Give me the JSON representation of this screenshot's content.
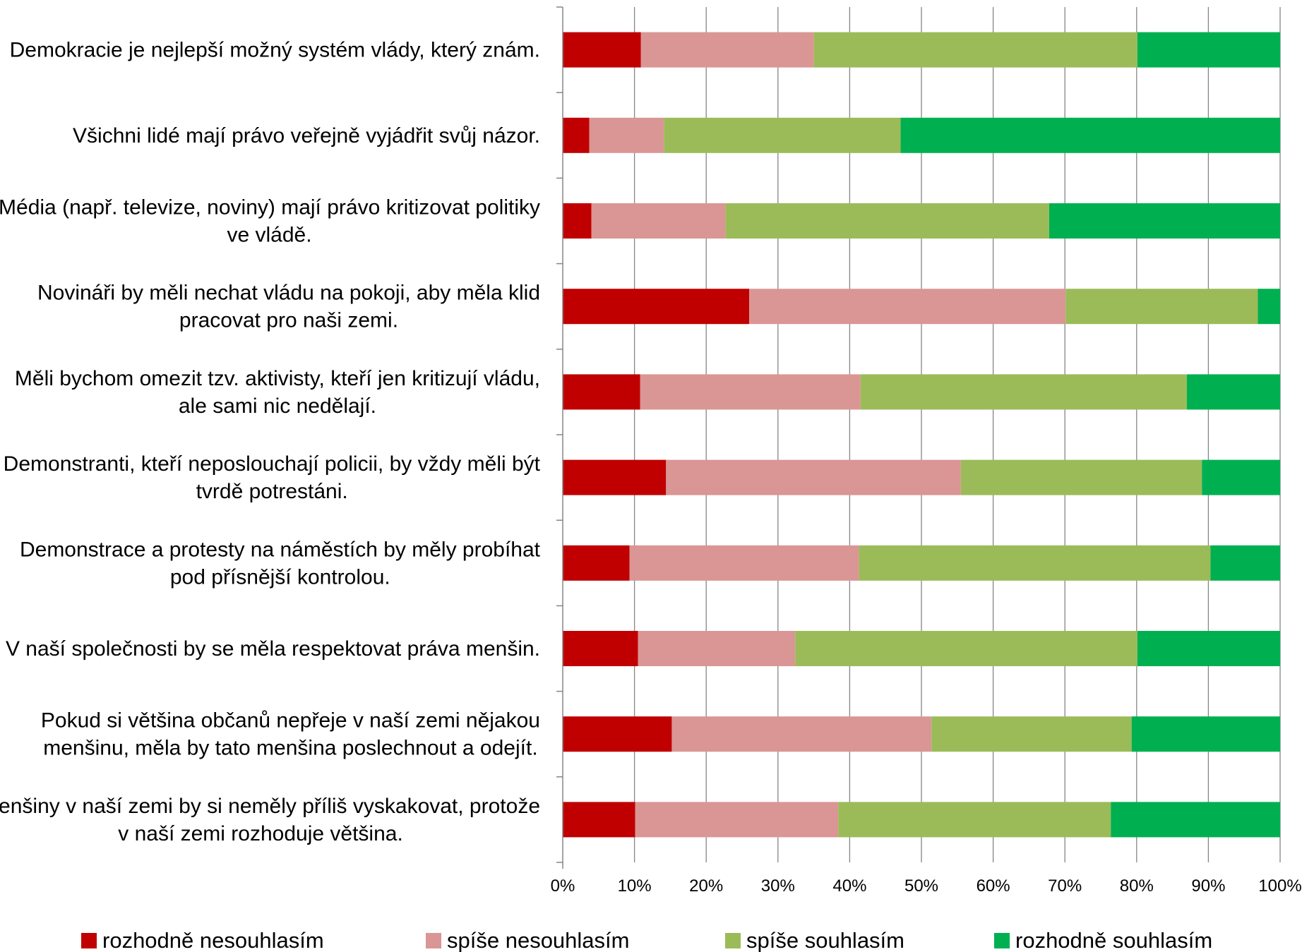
{
  "chart_data": {
    "type": "bar",
    "orientation": "horizontal",
    "stacked": true,
    "normalized": true,
    "title": "",
    "xlabel": "",
    "ylabel": "",
    "xlim": [
      0,
      100
    ],
    "x_ticks": [
      "0%",
      "10%",
      "20%",
      "30%",
      "40%",
      "50%",
      "60%",
      "70%",
      "80%",
      "90%",
      "100%"
    ],
    "grid": "vertical",
    "legend_position": "bottom",
    "categories": [
      [
        "Demokracie je nejlepší možný systém vlády, který znám."
      ],
      [
        "Všichni lidé mají právo veřejně vyjádřit svůj názor."
      ],
      [
        "Média (např. televize, noviny) mají právo kritizovat politiky",
        "ve vládě."
      ],
      [
        "Novináři by měli nechat vládu na pokoji, aby měla klid",
        "pracovat pro naši zemi."
      ],
      [
        "Měli bychom omezit tzv. aktivisty, kteří jen kritizují vládu,",
        "ale sami nic nedělají."
      ],
      [
        "Demonstranti, kteří neposlouchají policii, by vždy měli být",
        "tvrdě potrestáni."
      ],
      [
        "Demonstrace a protesty na náměstích by měly probíhat",
        "pod přísnější kontrolou."
      ],
      [
        "V naší společnosti by se měla respektovat práva menšin."
      ],
      [
        "Pokud si většina občanů nepřeje v naší zemi nějakou",
        "menšinu, měla by tato menšina poslechnout a odejít."
      ],
      [
        "Menšiny v naší zemi by si neměly příliš vyskakovat, protože",
        "v naší zemi rozhoduje většina."
      ]
    ],
    "series": [
      {
        "name": "rozhodně nesouhlasím",
        "color": "#c00000",
        "values": [
          10.9,
          3.7,
          4.0,
          26.0,
          10.8,
          14.4,
          9.3,
          10.5,
          15.2,
          10.1
        ]
      },
      {
        "name": "spíše nesouhlasím",
        "color": "#da9694",
        "values": [
          24.1,
          10.4,
          18.7,
          44.1,
          30.7,
          41.1,
          32.0,
          21.9,
          36.2,
          28.3
        ]
      },
      {
        "name": "spíše souhlasím",
        "color": "#9bbb59",
        "values": [
          45.1,
          33.0,
          45.1,
          26.8,
          45.5,
          33.6,
          49.0,
          47.7,
          27.9,
          38.0
        ]
      },
      {
        "name": "rozhodně souhlasím",
        "color": "#00b050",
        "values": [
          19.9,
          52.9,
          32.2,
          3.1,
          13.0,
          10.9,
          9.7,
          19.9,
          20.7,
          23.6
        ]
      }
    ]
  }
}
